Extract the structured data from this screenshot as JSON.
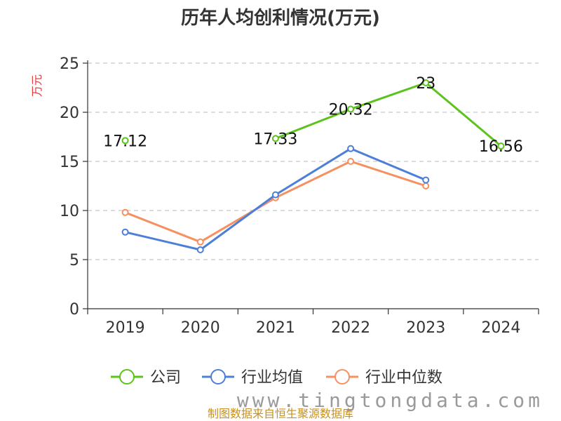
{
  "chart_data": {
    "type": "line",
    "title": "历年人均创利情况(万元)",
    "ylabel": "万元",
    "categories": [
      "2019",
      "2020",
      "2021",
      "2022",
      "2023",
      "2024"
    ],
    "ylim": [
      0,
      25
    ],
    "yticks": [
      0,
      5,
      10,
      15,
      20,
      25
    ],
    "grid": true,
    "legend_position": "bottom",
    "series": [
      {
        "name": "公司",
        "color": "#5cc21c",
        "values": [
          17.12,
          null,
          17.33,
          20.32,
          23,
          16.56
        ],
        "labels": [
          "17.12",
          "",
          "17.33",
          "20.32",
          "23",
          "16.56"
        ]
      },
      {
        "name": "行业均值",
        "color": "#4d7fd9",
        "values": [
          7.8,
          6.0,
          11.6,
          16.3,
          13.1,
          null
        ]
      },
      {
        "name": "行业中位数",
        "color": "#f79060",
        "values": [
          9.8,
          6.8,
          11.3,
          15.0,
          12.5,
          null
        ]
      }
    ]
  },
  "footer": {
    "source": "制图数据来自恒生聚源数据库",
    "watermark": "www.tingtongdata.com"
  }
}
